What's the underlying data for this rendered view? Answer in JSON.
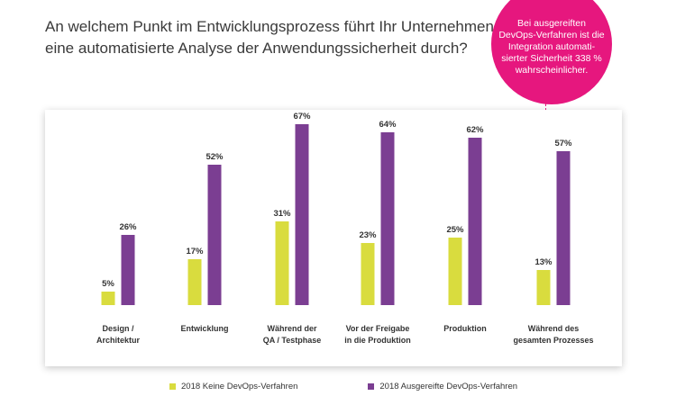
{
  "title": "An welchem Punkt im Entwicklungsprozess führt Ihr Unternehmen eine automatisierte Analyse der Anwendungssicherheit durch?",
  "callout": {
    "text": "Bei ausgereiften DevOps-Verfahren ist die Integration automati­sierter Sicherheit 338 % wahrscheinlicher.",
    "color": "#e6177e"
  },
  "chart_data": {
    "type": "bar",
    "title": "An welchem Punkt im Entwicklungsprozess führt Ihr Unternehmen eine automatisierte Analyse der Anwendungssicherheit durch?",
    "categories": [
      [
        "Design /",
        "Architektur"
      ],
      [
        "Entwicklung"
      ],
      [
        "Während der",
        "QA / Testphase"
      ],
      [
        "Vor der Freigabe",
        "in die Produktion"
      ],
      [
        "Produktion"
      ],
      [
        "Während des",
        "gesamten Prozesses"
      ]
    ],
    "series": [
      {
        "name": "2018 Keine DevOps-Verfahren",
        "values": [
          5,
          17,
          31,
          23,
          25,
          13
        ],
        "labels": [
          "5%",
          "17%",
          "31%",
          "23%",
          "25%",
          "13%"
        ],
        "color": "#d9dc3e"
      },
      {
        "name": "2018 Ausgereifte DevOps-Verfahren",
        "values": [
          26,
          52,
          67,
          64,
          62,
          57
        ],
        "labels": [
          "26%",
          "52%",
          "67%",
          "64%",
          "62%",
          "57%"
        ],
        "color": "#7b3e92"
      }
    ],
    "unit": "%",
    "ylim": [
      0,
      70
    ],
    "grid": false,
    "legend_position": "bottom"
  }
}
